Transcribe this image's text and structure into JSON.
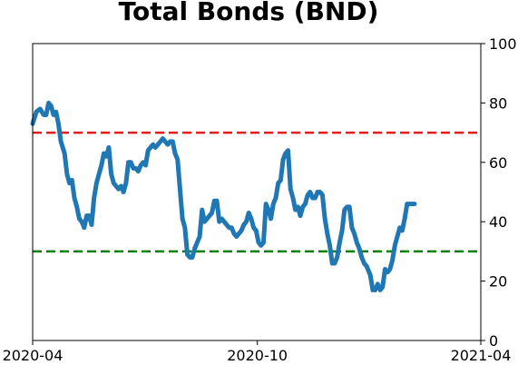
{
  "chart_data": {
    "type": "line",
    "title": "Total Bonds (BND)",
    "xlabel": "",
    "ylabel": "",
    "y_axis_side": "right",
    "xlim": [
      "2020-04-01",
      "2021-04-01"
    ],
    "ylim": [
      0,
      100
    ],
    "x_ticks": [
      {
        "label": "2020-04",
        "date": "2020-04-01"
      },
      {
        "label": "2020-10",
        "date": "2020-10-01"
      },
      {
        "label": "2021-04",
        "date": "2021-04-01"
      }
    ],
    "y_ticks": [
      0,
      20,
      40,
      60,
      80,
      100
    ],
    "grid": false,
    "reference_lines": [
      {
        "y": 70,
        "color": "#e41a1c",
        "style": "dashed"
      },
      {
        "y": 30,
        "color": "#008000",
        "style": "dashed"
      }
    ],
    "series": [
      {
        "color": "#1f77b4",
        "points": [
          [
            "2020-04-01",
            73
          ],
          [
            "2020-04-04",
            77
          ],
          [
            "2020-04-07",
            78
          ],
          [
            "2020-04-10",
            76
          ],
          [
            "2020-04-12",
            76
          ],
          [
            "2020-04-14",
            80
          ],
          [
            "2020-04-16",
            79
          ],
          [
            "2020-04-18",
            76
          ],
          [
            "2020-04-20",
            77
          ],
          [
            "2020-04-22",
            73
          ],
          [
            "2020-04-24",
            67
          ],
          [
            "2020-04-27",
            63
          ],
          [
            "2020-04-29",
            56
          ],
          [
            "2020-05-01",
            53
          ],
          [
            "2020-05-03",
            54
          ],
          [
            "2020-05-05",
            48
          ],
          [
            "2020-05-07",
            45
          ],
          [
            "2020-05-09",
            41
          ],
          [
            "2020-05-11",
            40
          ],
          [
            "2020-05-13",
            38
          ],
          [
            "2020-05-15",
            42
          ],
          [
            "2020-05-17",
            42
          ],
          [
            "2020-05-19",
            39
          ],
          [
            "2020-05-21",
            48
          ],
          [
            "2020-05-23",
            53
          ],
          [
            "2020-05-25",
            56
          ],
          [
            "2020-05-27",
            59
          ],
          [
            "2020-05-29",
            63
          ],
          [
            "2020-05-31",
            62
          ],
          [
            "2020-06-02",
            65
          ],
          [
            "2020-06-04",
            56
          ],
          [
            "2020-06-06",
            53
          ],
          [
            "2020-06-08",
            52
          ],
          [
            "2020-06-10",
            51
          ],
          [
            "2020-06-12",
            52
          ],
          [
            "2020-06-14",
            50
          ],
          [
            "2020-06-16",
            53
          ],
          [
            "2020-06-18",
            60
          ],
          [
            "2020-06-20",
            60
          ],
          [
            "2020-06-22",
            58
          ],
          [
            "2020-06-24",
            58
          ],
          [
            "2020-06-26",
            57
          ],
          [
            "2020-06-28",
            59
          ],
          [
            "2020-06-30",
            60
          ],
          [
            "2020-07-02",
            59
          ],
          [
            "2020-07-04",
            64
          ],
          [
            "2020-07-06",
            65
          ],
          [
            "2020-07-08",
            66
          ],
          [
            "2020-07-10",
            65
          ],
          [
            "2020-07-12",
            66
          ],
          [
            "2020-07-14",
            67
          ],
          [
            "2020-07-16",
            68
          ],
          [
            "2020-07-18",
            67
          ],
          [
            "2020-07-20",
            66
          ],
          [
            "2020-07-22",
            67
          ],
          [
            "2020-07-24",
            67
          ],
          [
            "2020-07-26",
            63
          ],
          [
            "2020-07-28",
            61
          ],
          [
            "2020-07-30",
            51
          ],
          [
            "2020-08-01",
            41
          ],
          [
            "2020-08-03",
            38
          ],
          [
            "2020-08-05",
            29
          ],
          [
            "2020-08-07",
            28
          ],
          [
            "2020-08-09",
            28
          ],
          [
            "2020-08-11",
            31
          ],
          [
            "2020-08-13",
            33
          ],
          [
            "2020-08-15",
            35
          ],
          [
            "2020-08-17",
            44
          ],
          [
            "2020-08-19",
            40
          ],
          [
            "2020-08-21",
            41
          ],
          [
            "2020-08-23",
            42
          ],
          [
            "2020-08-25",
            43
          ],
          [
            "2020-08-27",
            47
          ],
          [
            "2020-08-29",
            47
          ],
          [
            "2020-08-31",
            40
          ],
          [
            "2020-09-02",
            41
          ],
          [
            "2020-09-04",
            40
          ],
          [
            "2020-09-06",
            39
          ],
          [
            "2020-09-08",
            38
          ],
          [
            "2020-09-10",
            38
          ],
          [
            "2020-09-12",
            36
          ],
          [
            "2020-09-14",
            35
          ],
          [
            "2020-09-16",
            36
          ],
          [
            "2020-09-18",
            37
          ],
          [
            "2020-09-20",
            39
          ],
          [
            "2020-09-22",
            40
          ],
          [
            "2020-09-24",
            43
          ],
          [
            "2020-09-26",
            41
          ],
          [
            "2020-09-28",
            38
          ],
          [
            "2020-09-30",
            37
          ],
          [
            "2020-10-02",
            33
          ],
          [
            "2020-10-04",
            32
          ],
          [
            "2020-10-06",
            33
          ],
          [
            "2020-10-08",
            46
          ],
          [
            "2020-10-10",
            44
          ],
          [
            "2020-10-12",
            41
          ],
          [
            "2020-10-14",
            46
          ],
          [
            "2020-10-16",
            48
          ],
          [
            "2020-10-18",
            53
          ],
          [
            "2020-10-20",
            54
          ],
          [
            "2020-10-22",
            61
          ],
          [
            "2020-10-24",
            63
          ],
          [
            "2020-10-26",
            64
          ],
          [
            "2020-10-28",
            51
          ],
          [
            "2020-10-30",
            48
          ],
          [
            "2020-11-01",
            44
          ],
          [
            "2020-11-03",
            45
          ],
          [
            "2020-11-05",
            42
          ],
          [
            "2020-11-07",
            45
          ],
          [
            "2020-11-09",
            46
          ],
          [
            "2020-11-11",
            49
          ],
          [
            "2020-11-13",
            50
          ],
          [
            "2020-11-15",
            48
          ],
          [
            "2020-11-17",
            48
          ],
          [
            "2020-11-19",
            50
          ],
          [
            "2020-11-21",
            50
          ],
          [
            "2020-11-23",
            49
          ],
          [
            "2020-11-25",
            41
          ],
          [
            "2020-11-27",
            36
          ],
          [
            "2020-11-29",
            32
          ],
          [
            "2020-12-01",
            26
          ],
          [
            "2020-12-03",
            26
          ],
          [
            "2020-12-05",
            28
          ],
          [
            "2020-12-07",
            33
          ],
          [
            "2020-12-09",
            37
          ],
          [
            "2020-12-11",
            44
          ],
          [
            "2020-12-13",
            45
          ],
          [
            "2020-12-15",
            45
          ],
          [
            "2020-12-17",
            38
          ],
          [
            "2020-12-19",
            36
          ],
          [
            "2020-12-21",
            33
          ],
          [
            "2020-12-23",
            31
          ],
          [
            "2020-12-25",
            28
          ],
          [
            "2020-12-27",
            26
          ],
          [
            "2020-12-29",
            25
          ],
          [
            "2021-01-01",
            22
          ],
          [
            "2021-01-03",
            17
          ],
          [
            "2021-01-05",
            17
          ],
          [
            "2021-01-07",
            19
          ],
          [
            "2021-01-09",
            17
          ],
          [
            "2021-01-11",
            18
          ],
          [
            "2021-01-13",
            24
          ],
          [
            "2021-01-15",
            23
          ],
          [
            "2021-01-17",
            24
          ],
          [
            "2021-01-19",
            27
          ],
          [
            "2021-01-21",
            32
          ],
          [
            "2021-01-23",
            35
          ],
          [
            "2021-01-25",
            38
          ],
          [
            "2021-01-27",
            37
          ],
          [
            "2021-01-29",
            41
          ],
          [
            "2021-01-31",
            46
          ],
          [
            "2021-02-02",
            46
          ],
          [
            "2021-02-04",
            46
          ],
          [
            "2021-02-06",
            46
          ]
        ]
      }
    ]
  }
}
